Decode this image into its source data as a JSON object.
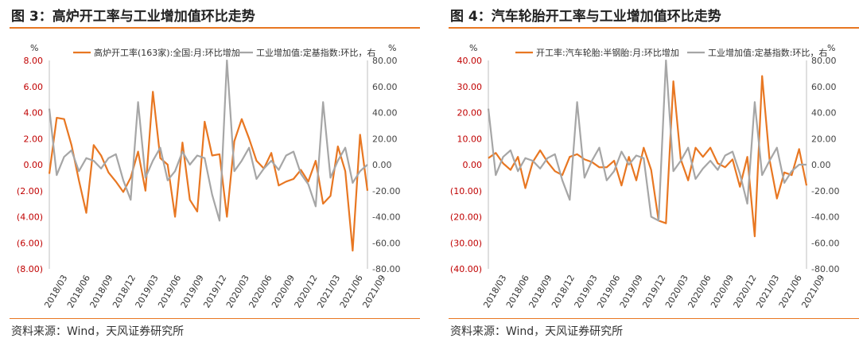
{
  "chart_data": [
    {
      "type": "line",
      "title": "图 3：高炉开工率与工业增加值环比走势",
      "source": "资料来源：Wind，天风证券研究所",
      "left_unit": "%",
      "right_unit": "%",
      "left_ylim": [
        -8,
        8
      ],
      "left_ticks": [
        "8.00",
        "6.00",
        "4.00",
        "2.00",
        "0.00",
        "(2.00)",
        "(4.00)",
        "(6.00)",
        "(8.00)"
      ],
      "right_ylim": [
        -80,
        80
      ],
      "right_ticks": [
        "80.00",
        "60.00",
        "40.00",
        "20.00",
        "0.00",
        "-20.00",
        "-40.00",
        "-60.00",
        "-80.00"
      ],
      "x_labels": [
        "2018/03",
        "2018/06",
        "2018/09",
        "2018/12",
        "2019/03",
        "2019/06",
        "2019/09",
        "2019/12",
        "2020/03",
        "2020/06",
        "2020/09",
        "2020/12",
        "2021/03",
        "2021/06",
        "2021/09"
      ],
      "series": [
        {
          "name": "高炉开工率(163家):全国:月:环比增加",
          "axis": "left",
          "color": "#e87722",
          "values": [
            -0.7,
            3.6,
            3.5,
            1.5,
            -1.2,
            -3.7,
            1.5,
            0.7,
            -0.6,
            -1.3,
            -2.1,
            -1.0,
            1.0,
            -2.0,
            5.6,
            0.5,
            0.0,
            -4.0,
            1.7,
            -2.7,
            -3.6,
            3.3,
            0.7,
            0.8,
            -4.0,
            1.8,
            3.5,
            2.0,
            0.3,
            -0.3,
            0.9,
            -1.6,
            -1.3,
            -1.1,
            -0.4,
            -1.3,
            0.3,
            -3.0,
            -2.4,
            1.4,
            -0.5,
            -6.6,
            2.3,
            -2.0
          ]
        },
        {
          "name": "工业增加值:定基指数:环比，右",
          "axis": "right",
          "color": "#a6a6a6",
          "values": [
            43,
            -8,
            6,
            11,
            -5,
            5,
            3,
            -3,
            5,
            8,
            -12,
            -27,
            48,
            -10,
            3,
            13,
            -12,
            -5,
            10,
            0,
            7,
            5,
            -23,
            -43,
            80,
            -5,
            3,
            13,
            -11,
            -3,
            3,
            -4,
            7,
            10,
            -7,
            -15,
            -32,
            48,
            -10,
            3,
            13,
            -14,
            -5,
            0
          ]
        }
      ]
    },
    {
      "type": "line",
      "title": "图 4：汽车轮胎开工率与工业增加值环比走势",
      "source": "资料来源：Wind，天风证券研究所",
      "left_unit": "%",
      "right_unit": "%",
      "left_ylim": [
        -40,
        40
      ],
      "left_ticks": [
        "40.00",
        "30.00",
        "20.00",
        "10.00",
        "0.00",
        "(10.00)",
        "(20.00)",
        "(30.00)",
        "(40.00)"
      ],
      "right_ylim": [
        -80,
        80
      ],
      "right_ticks": [
        "80.00",
        "60.00",
        "40.00",
        "20.00",
        "0.00",
        "-20.00",
        "-40.00",
        "-60.00",
        "-80.00"
      ],
      "x_labels": [
        "2018/03",
        "2018/06",
        "2018/09",
        "2018/12",
        "2019/03",
        "2019/06",
        "2019/09",
        "2019/12",
        "2020/03",
        "2020/06",
        "2020/09",
        "2020/12",
        "2021/03",
        "2021/06",
        "2021/09"
      ],
      "series": [
        {
          "name": "开工率:汽车轮胎:半钢胎:月:环比增加",
          "axis": "left",
          "color": "#e87722",
          "values": [
            2.5,
            4.5,
            0.5,
            -2.0,
            3.0,
            -9.0,
            1.0,
            5.5,
            1.0,
            -2.5,
            -4.0,
            3.0,
            4.0,
            2.0,
            1.0,
            -1.0,
            -1.0,
            1.5,
            -8.0,
            3.0,
            -6.0,
            6.5,
            -2.0,
            -21.5,
            -22.5,
            32.0,
            2.0,
            -6.0,
            6.5,
            3.0,
            6.5,
            0.5,
            -1.0,
            2.0,
            -8.5,
            3.0,
            -27.5,
            34.0,
            2.0,
            -13.0,
            -3.0,
            -4.0,
            6.0,
            -8.0
          ]
        },
        {
          "name": "工业增加值:定基指数:环比，右",
          "axis": "right",
          "color": "#a6a6a6",
          "values": [
            43,
            -8,
            6,
            11,
            -5,
            5,
            3,
            -3,
            5,
            8,
            -12,
            -27,
            48,
            -10,
            3,
            13,
            -12,
            -5,
            10,
            0,
            7,
            5,
            -40,
            -43,
            80,
            -5,
            3,
            13,
            -11,
            -3,
            3,
            -4,
            7,
            10,
            -7,
            -30,
            48,
            -8,
            3,
            13,
            -14,
            -5,
            0,
            0
          ]
        }
      ]
    }
  ]
}
